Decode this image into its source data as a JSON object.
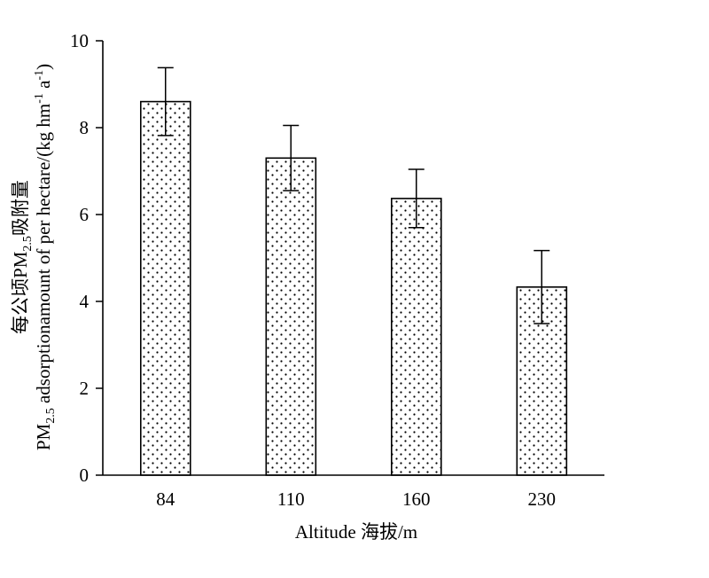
{
  "chart_data": {
    "type": "bar",
    "categories": [
      "84",
      "110",
      "160",
      "230"
    ],
    "values": [
      8.6,
      7.3,
      6.37,
      4.33
    ],
    "errors": [
      0.78,
      0.75,
      0.67,
      0.84
    ],
    "title": "",
    "xlabel": "Altitude 海拔/m",
    "ylabel_line1": "每公顷PM2.5吸附量",
    "ylabel_line2": "PM2.5 adsorptionamount of per hectare/(kg hm-1 a-1)",
    "ylim": [
      0,
      10
    ],
    "yticks": [
      0,
      2,
      4,
      6,
      8,
      10
    ],
    "bar_fill": "dotted",
    "grid": false,
    "legend": "none"
  },
  "colors": {
    "axis": "#000000",
    "bar_stroke": "#000000",
    "bar_dot": "#000000",
    "background": "#ffffff"
  }
}
